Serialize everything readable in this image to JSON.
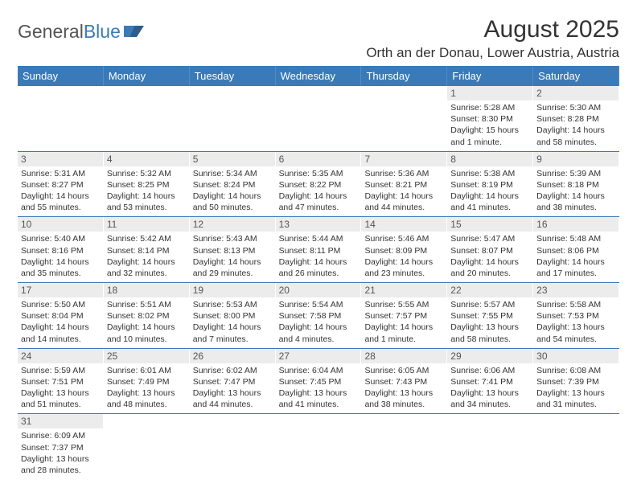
{
  "brand": {
    "part1": "General",
    "part2": "Blue"
  },
  "title": "August 2025",
  "location": "Orth an der Donau, Lower Austria, Austria",
  "colors": {
    "header_bg": "#3a7ab8",
    "header_text": "#ffffff",
    "daynum_bg": "#ececec",
    "border": "#3a7ab8",
    "text": "#333333"
  },
  "dayNames": [
    "Sunday",
    "Monday",
    "Tuesday",
    "Wednesday",
    "Thursday",
    "Friday",
    "Saturday"
  ],
  "weeks": [
    [
      {
        "empty": true
      },
      {
        "empty": true
      },
      {
        "empty": true
      },
      {
        "empty": true
      },
      {
        "empty": true
      },
      {
        "n": "1",
        "sunrise": "Sunrise: 5:28 AM",
        "sunset": "Sunset: 8:30 PM",
        "day1": "Daylight: 15 hours",
        "day2": "and 1 minute."
      },
      {
        "n": "2",
        "sunrise": "Sunrise: 5:30 AM",
        "sunset": "Sunset: 8:28 PM",
        "day1": "Daylight: 14 hours",
        "day2": "and 58 minutes."
      }
    ],
    [
      {
        "n": "3",
        "sunrise": "Sunrise: 5:31 AM",
        "sunset": "Sunset: 8:27 PM",
        "day1": "Daylight: 14 hours",
        "day2": "and 55 minutes."
      },
      {
        "n": "4",
        "sunrise": "Sunrise: 5:32 AM",
        "sunset": "Sunset: 8:25 PM",
        "day1": "Daylight: 14 hours",
        "day2": "and 53 minutes."
      },
      {
        "n": "5",
        "sunrise": "Sunrise: 5:34 AM",
        "sunset": "Sunset: 8:24 PM",
        "day1": "Daylight: 14 hours",
        "day2": "and 50 minutes."
      },
      {
        "n": "6",
        "sunrise": "Sunrise: 5:35 AM",
        "sunset": "Sunset: 8:22 PM",
        "day1": "Daylight: 14 hours",
        "day2": "and 47 minutes."
      },
      {
        "n": "7",
        "sunrise": "Sunrise: 5:36 AM",
        "sunset": "Sunset: 8:21 PM",
        "day1": "Daylight: 14 hours",
        "day2": "and 44 minutes."
      },
      {
        "n": "8",
        "sunrise": "Sunrise: 5:38 AM",
        "sunset": "Sunset: 8:19 PM",
        "day1": "Daylight: 14 hours",
        "day2": "and 41 minutes."
      },
      {
        "n": "9",
        "sunrise": "Sunrise: 5:39 AM",
        "sunset": "Sunset: 8:18 PM",
        "day1": "Daylight: 14 hours",
        "day2": "and 38 minutes."
      }
    ],
    [
      {
        "n": "10",
        "sunrise": "Sunrise: 5:40 AM",
        "sunset": "Sunset: 8:16 PM",
        "day1": "Daylight: 14 hours",
        "day2": "and 35 minutes."
      },
      {
        "n": "11",
        "sunrise": "Sunrise: 5:42 AM",
        "sunset": "Sunset: 8:14 PM",
        "day1": "Daylight: 14 hours",
        "day2": "and 32 minutes."
      },
      {
        "n": "12",
        "sunrise": "Sunrise: 5:43 AM",
        "sunset": "Sunset: 8:13 PM",
        "day1": "Daylight: 14 hours",
        "day2": "and 29 minutes."
      },
      {
        "n": "13",
        "sunrise": "Sunrise: 5:44 AM",
        "sunset": "Sunset: 8:11 PM",
        "day1": "Daylight: 14 hours",
        "day2": "and 26 minutes."
      },
      {
        "n": "14",
        "sunrise": "Sunrise: 5:46 AM",
        "sunset": "Sunset: 8:09 PM",
        "day1": "Daylight: 14 hours",
        "day2": "and 23 minutes."
      },
      {
        "n": "15",
        "sunrise": "Sunrise: 5:47 AM",
        "sunset": "Sunset: 8:07 PM",
        "day1": "Daylight: 14 hours",
        "day2": "and 20 minutes."
      },
      {
        "n": "16",
        "sunrise": "Sunrise: 5:48 AM",
        "sunset": "Sunset: 8:06 PM",
        "day1": "Daylight: 14 hours",
        "day2": "and 17 minutes."
      }
    ],
    [
      {
        "n": "17",
        "sunrise": "Sunrise: 5:50 AM",
        "sunset": "Sunset: 8:04 PM",
        "day1": "Daylight: 14 hours",
        "day2": "and 14 minutes."
      },
      {
        "n": "18",
        "sunrise": "Sunrise: 5:51 AM",
        "sunset": "Sunset: 8:02 PM",
        "day1": "Daylight: 14 hours",
        "day2": "and 10 minutes."
      },
      {
        "n": "19",
        "sunrise": "Sunrise: 5:53 AM",
        "sunset": "Sunset: 8:00 PM",
        "day1": "Daylight: 14 hours",
        "day2": "and 7 minutes."
      },
      {
        "n": "20",
        "sunrise": "Sunrise: 5:54 AM",
        "sunset": "Sunset: 7:58 PM",
        "day1": "Daylight: 14 hours",
        "day2": "and 4 minutes."
      },
      {
        "n": "21",
        "sunrise": "Sunrise: 5:55 AM",
        "sunset": "Sunset: 7:57 PM",
        "day1": "Daylight: 14 hours",
        "day2": "and 1 minute."
      },
      {
        "n": "22",
        "sunrise": "Sunrise: 5:57 AM",
        "sunset": "Sunset: 7:55 PM",
        "day1": "Daylight: 13 hours",
        "day2": "and 58 minutes."
      },
      {
        "n": "23",
        "sunrise": "Sunrise: 5:58 AM",
        "sunset": "Sunset: 7:53 PM",
        "day1": "Daylight: 13 hours",
        "day2": "and 54 minutes."
      }
    ],
    [
      {
        "n": "24",
        "sunrise": "Sunrise: 5:59 AM",
        "sunset": "Sunset: 7:51 PM",
        "day1": "Daylight: 13 hours",
        "day2": "and 51 minutes."
      },
      {
        "n": "25",
        "sunrise": "Sunrise: 6:01 AM",
        "sunset": "Sunset: 7:49 PM",
        "day1": "Daylight: 13 hours",
        "day2": "and 48 minutes."
      },
      {
        "n": "26",
        "sunrise": "Sunrise: 6:02 AM",
        "sunset": "Sunset: 7:47 PM",
        "day1": "Daylight: 13 hours",
        "day2": "and 44 minutes."
      },
      {
        "n": "27",
        "sunrise": "Sunrise: 6:04 AM",
        "sunset": "Sunset: 7:45 PM",
        "day1": "Daylight: 13 hours",
        "day2": "and 41 minutes."
      },
      {
        "n": "28",
        "sunrise": "Sunrise: 6:05 AM",
        "sunset": "Sunset: 7:43 PM",
        "day1": "Daylight: 13 hours",
        "day2": "and 38 minutes."
      },
      {
        "n": "29",
        "sunrise": "Sunrise: 6:06 AM",
        "sunset": "Sunset: 7:41 PM",
        "day1": "Daylight: 13 hours",
        "day2": "and 34 minutes."
      },
      {
        "n": "30",
        "sunrise": "Sunrise: 6:08 AM",
        "sunset": "Sunset: 7:39 PM",
        "day1": "Daylight: 13 hours",
        "day2": "and 31 minutes."
      }
    ],
    [
      {
        "n": "31",
        "sunrise": "Sunrise: 6:09 AM",
        "sunset": "Sunset: 7:37 PM",
        "day1": "Daylight: 13 hours",
        "day2": "and 28 minutes."
      },
      {
        "empty": true
      },
      {
        "empty": true
      },
      {
        "empty": true
      },
      {
        "empty": true
      },
      {
        "empty": true
      },
      {
        "empty": true
      }
    ]
  ]
}
